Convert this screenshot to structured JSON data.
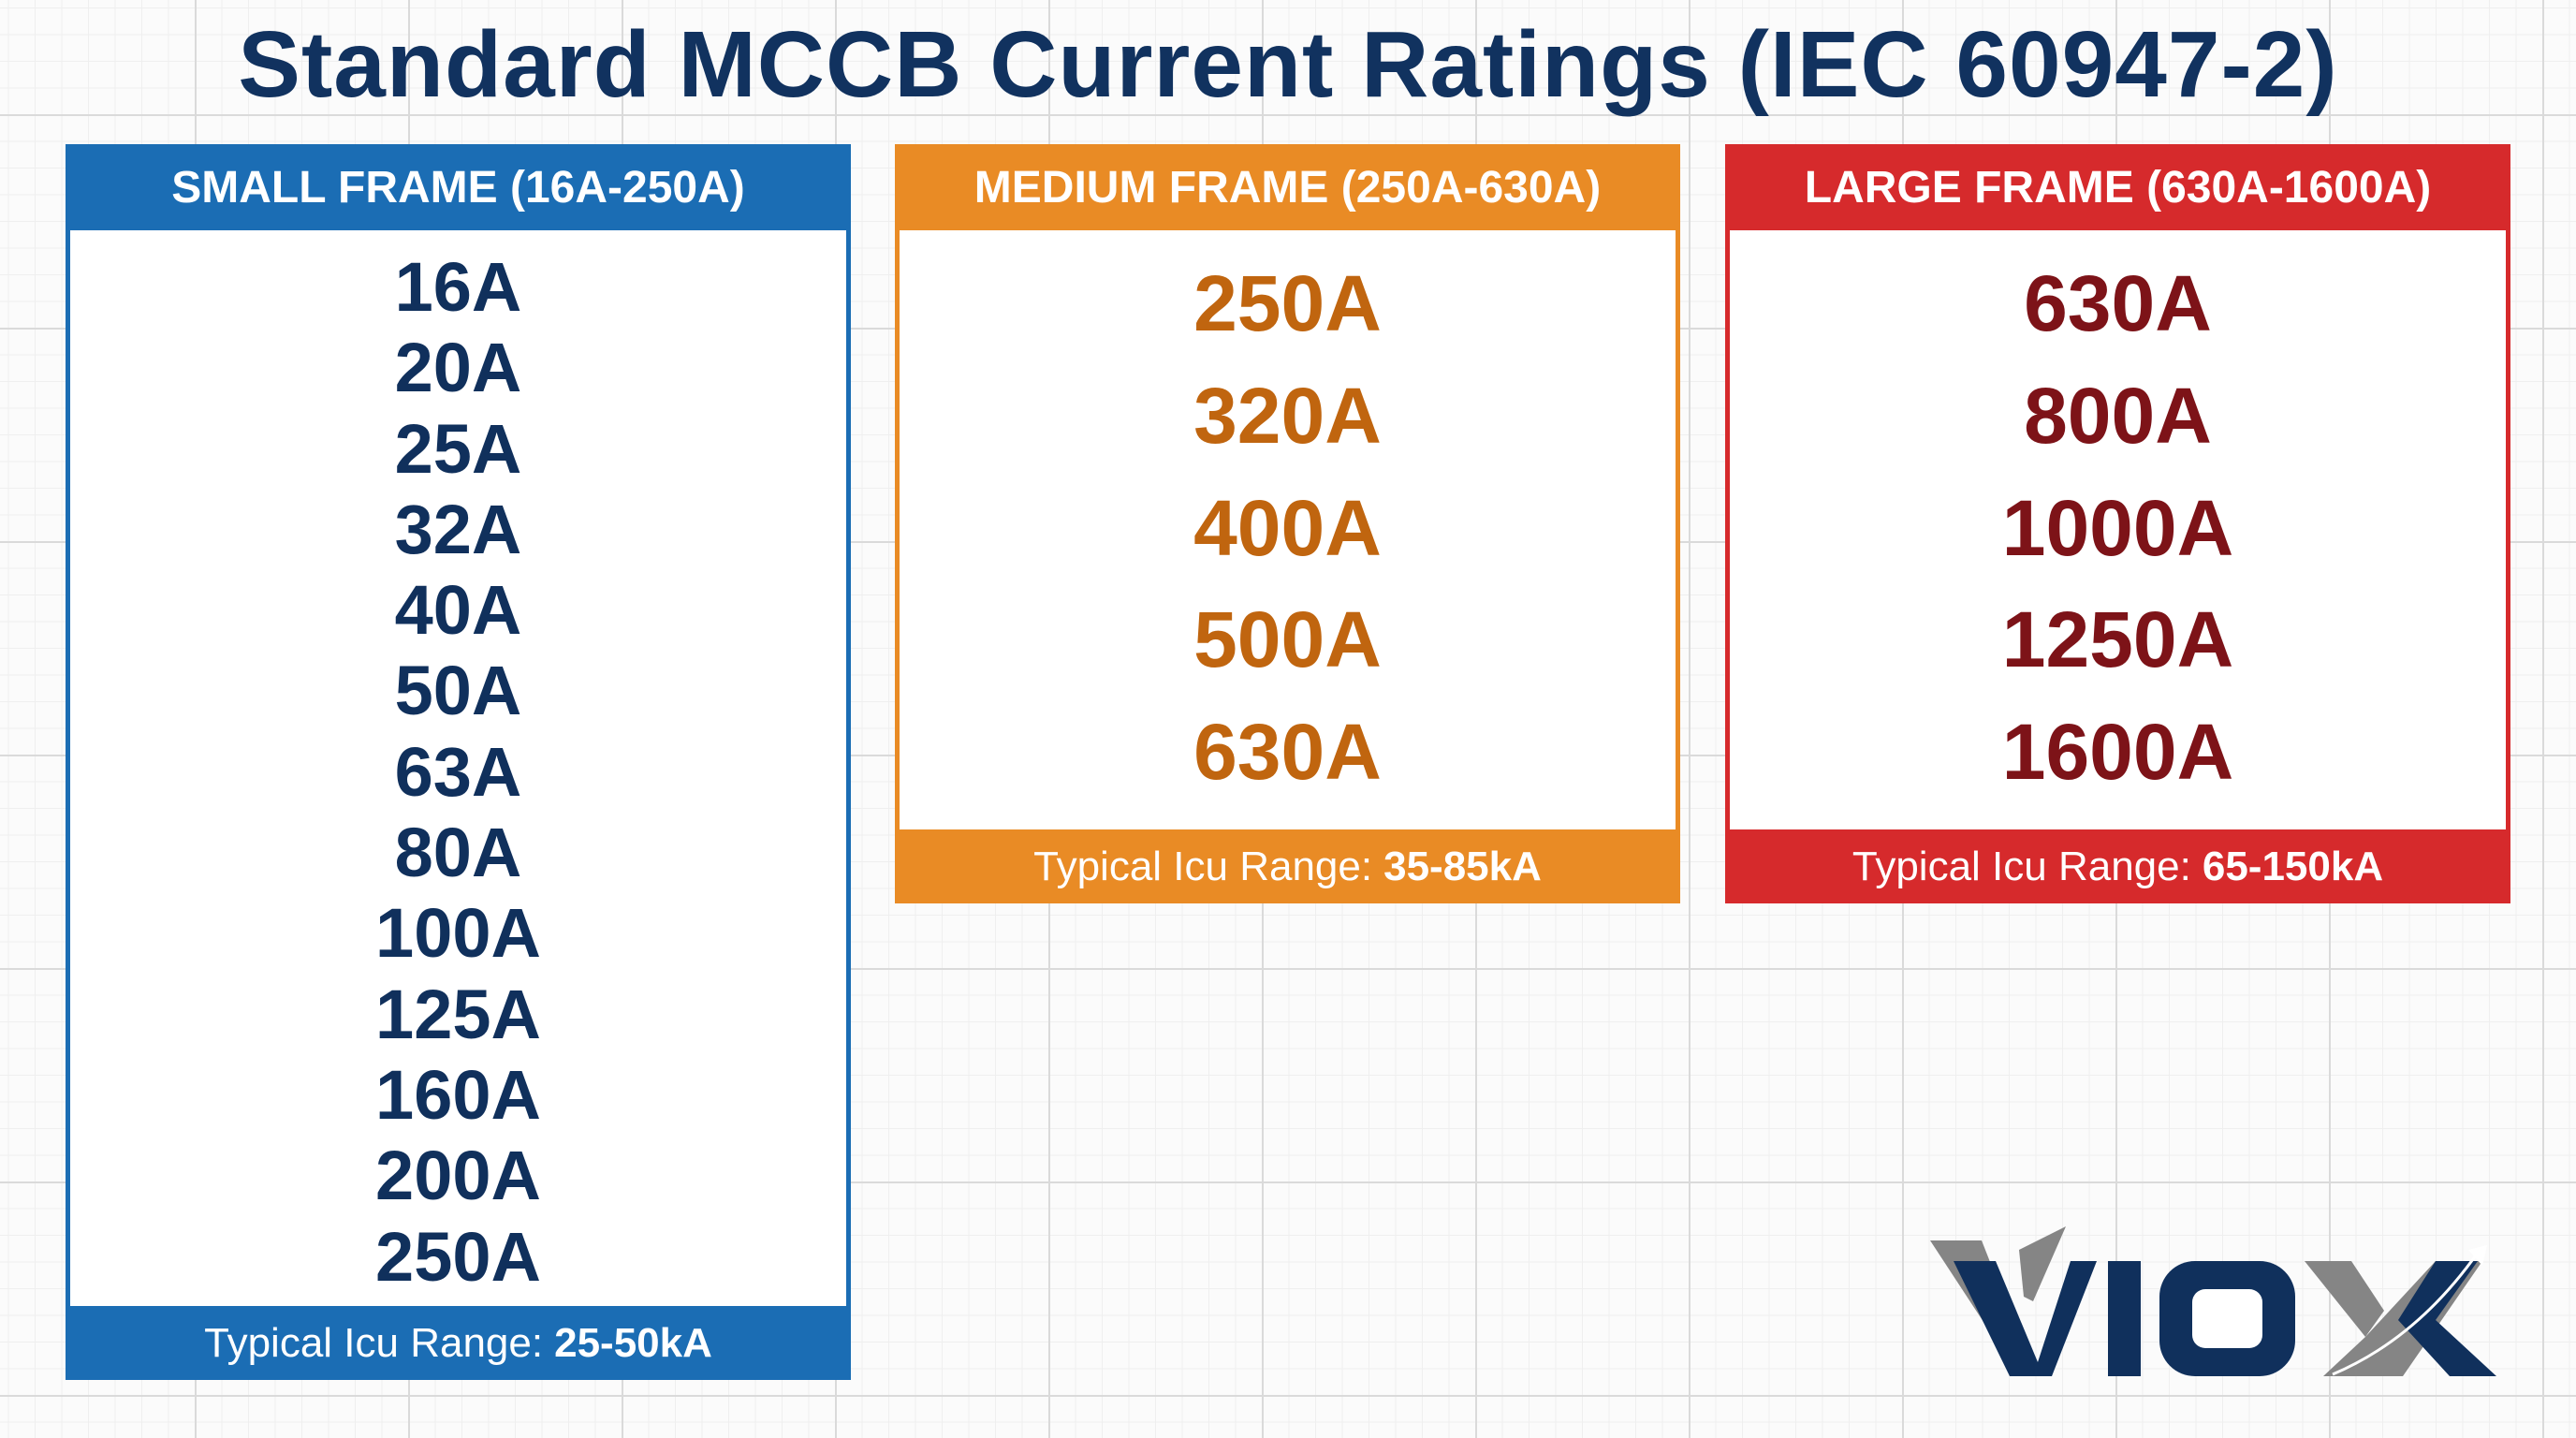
{
  "title": "Standard MCCB Current Ratings (IEC 60947-2)",
  "frames": {
    "small": {
      "header": "SMALL FRAME (16A-250A)",
      "ratings": [
        "16A",
        "20A",
        "25A",
        "32A",
        "40A",
        "50A",
        "63A",
        "80A",
        "100A",
        "125A",
        "160A",
        "200A",
        "250A"
      ],
      "footer_label": "Typical Icu Range:",
      "footer_value": "25-50kA",
      "color": "#1b6db4"
    },
    "medium": {
      "header": "MEDIUM FRAME (250A-630A)",
      "ratings": [
        "250A",
        "320A",
        "400A",
        "500A",
        "630A"
      ],
      "footer_label": "Typical Icu Range:",
      "footer_value": "35-85kA",
      "color": "#e98b25"
    },
    "large": {
      "header": "LARGE FRAME (630A-1600A)",
      "ratings": [
        "630A",
        "800A",
        "1000A",
        "1250A",
        "1600A"
      ],
      "footer_label": "Typical Icu Range:",
      "footer_value": "65-150kA",
      "color": "#d62a2c"
    }
  },
  "logo": {
    "text": "VIOX",
    "primary_color": "#10305c",
    "secondary_color": "#858585"
  }
}
